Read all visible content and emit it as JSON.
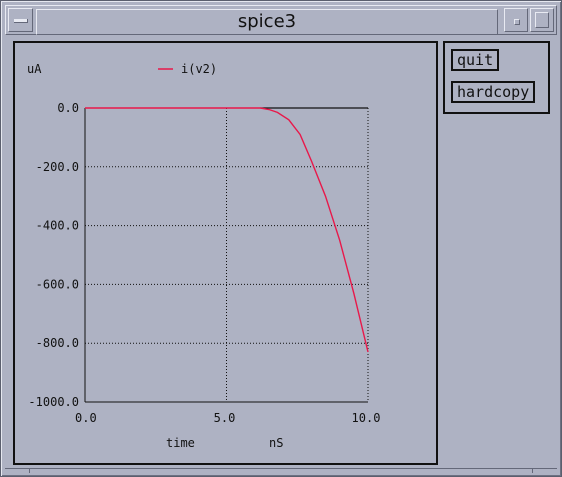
{
  "window": {
    "title": "spice3"
  },
  "buttons": {
    "quit_label": "quit",
    "hardcopy_label": "hardcopy"
  },
  "colors": {
    "background": "#aeb2c3",
    "trace": "#e8184a",
    "axis": "#111111"
  },
  "chart_data": {
    "type": "line",
    "title": "",
    "ylabel": "uA",
    "xlabel": "time",
    "xunit": "nS",
    "xlim": [
      0,
      10
    ],
    "ylim": [
      -1000,
      0
    ],
    "xticks": [
      0,
      5,
      10
    ],
    "xtick_labels": [
      "0.0",
      "5.0",
      "10.0"
    ],
    "yticks": [
      0,
      -200,
      -400,
      -600,
      -800,
      -1000
    ],
    "ytick_labels": [
      "0.0",
      "-200.0",
      "-400.0",
      "-600.0",
      "-800.0",
      "-1000.0"
    ],
    "grid": true,
    "legend": [
      {
        "name": "i(v2)",
        "color": "#e8184a"
      }
    ],
    "series": [
      {
        "name": "i(v2)",
        "x": [
          0,
          1,
          2,
          3,
          4,
          5,
          6,
          6.2,
          6.5,
          6.8,
          7.2,
          7.6,
          8.0,
          8.5,
          9.0,
          9.5,
          10.0
        ],
        "y": [
          0,
          0,
          0,
          0,
          0,
          0,
          0,
          0,
          -5,
          -15,
          -40,
          -90,
          -180,
          -300,
          -450,
          -630,
          -830
        ]
      }
    ],
    "reference_line": {
      "y": 0,
      "x_from": 6.2,
      "x_to": 10.0,
      "color": "#111111"
    }
  }
}
